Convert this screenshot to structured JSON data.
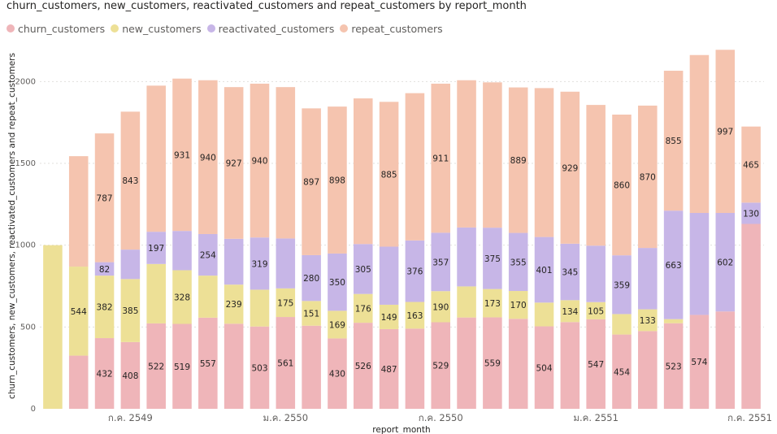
{
  "chart_data": {
    "type": "bar",
    "stacked": true,
    "title": "churn_customers, new_customers, reactivated_customers and repeat_customers by report_month",
    "xlabel": "report_month",
    "ylabel": "churn_customers, new_customers, reactivated_customers and repeat_customers",
    "ylim": [
      0,
      2250
    ],
    "yticks": [
      0,
      500,
      1000,
      1500,
      2000
    ],
    "gridlines": true,
    "legend_position": "top-left",
    "x_tick_labels": [
      "ก.ค. 2549",
      "ม.ค. 2550",
      "ก.ค. 2550",
      "ม.ค. 2551",
      "ก.ค. 2551"
    ],
    "series": [
      {
        "name": "churn_customers",
        "color": "#EFB5B9",
        "values": [
          0,
          325,
          432,
          408,
          522,
          519,
          557,
          520,
          503,
          561,
          508,
          430,
          526,
          487,
          490,
          529,
          558,
          559,
          550,
          504,
          530,
          547,
          454,
          475,
          523,
          574,
          595,
          1130
        ]
      },
      {
        "name": "new_customers",
        "color": "#EDE096",
        "values": [
          1000,
          544,
          382,
          385,
          363,
          328,
          257,
          239,
          225,
          175,
          151,
          169,
          176,
          149,
          163,
          190,
          190,
          173,
          170,
          145,
          134,
          105,
          125,
          133,
          25,
          0,
          0,
          0
        ]
      },
      {
        "name": "reactivated_customers",
        "color": "#C7B6E7",
        "values": [
          0,
          0,
          82,
          180,
          197,
          240,
          254,
          280,
          319,
          305,
          280,
          350,
          305,
          355,
          376,
          357,
          360,
          375,
          355,
          401,
          345,
          345,
          359,
          375,
          663,
          623,
          602,
          130
        ]
      },
      {
        "name": "repeat_customers",
        "color": "#F5C4AF",
        "values": [
          0,
          675,
          787,
          843,
          893,
          931,
          940,
          927,
          940,
          925,
          897,
          898,
          890,
          885,
          900,
          911,
          900,
          888,
          889,
          910,
          929,
          860,
          860,
          870,
          855,
          965,
          997,
          465
        ]
      }
    ],
    "data_labels": {
      "churn_customers": [
        null,
        null,
        "432",
        "408",
        "522",
        "519",
        "557",
        null,
        "503",
        "561",
        null,
        "430",
        "526",
        "487",
        null,
        "529",
        null,
        "559",
        null,
        "504",
        null,
        "547",
        "454",
        null,
        "523",
        "574",
        null,
        null
      ],
      "new_customers": [
        null,
        "544",
        "382",
        "385",
        null,
        "328",
        null,
        "239",
        null,
        "175",
        "151",
        "169",
        "176",
        "149",
        "163",
        "190",
        null,
        "173",
        "170",
        null,
        "134",
        "105",
        null,
        "133",
        null,
        null,
        null,
        null
      ],
      "reactivated_customers": [
        null,
        null,
        "82",
        null,
        "197",
        null,
        "254",
        null,
        "319",
        null,
        "280",
        "350",
        "305",
        null,
        "376",
        "357",
        null,
        "375",
        "355",
        "401",
        "345",
        null,
        "359",
        null,
        "663",
        null,
        "602",
        "130"
      ],
      "repeat_customers": [
        null,
        null,
        "787",
        "843",
        null,
        "931",
        "940",
        "927",
        "940",
        null,
        "897",
        "898",
        null,
        "885",
        null,
        "911",
        null,
        null,
        "889",
        null,
        "929",
        null,
        "860",
        "870",
        "855",
        null,
        "997",
        "465"
      ]
    }
  }
}
